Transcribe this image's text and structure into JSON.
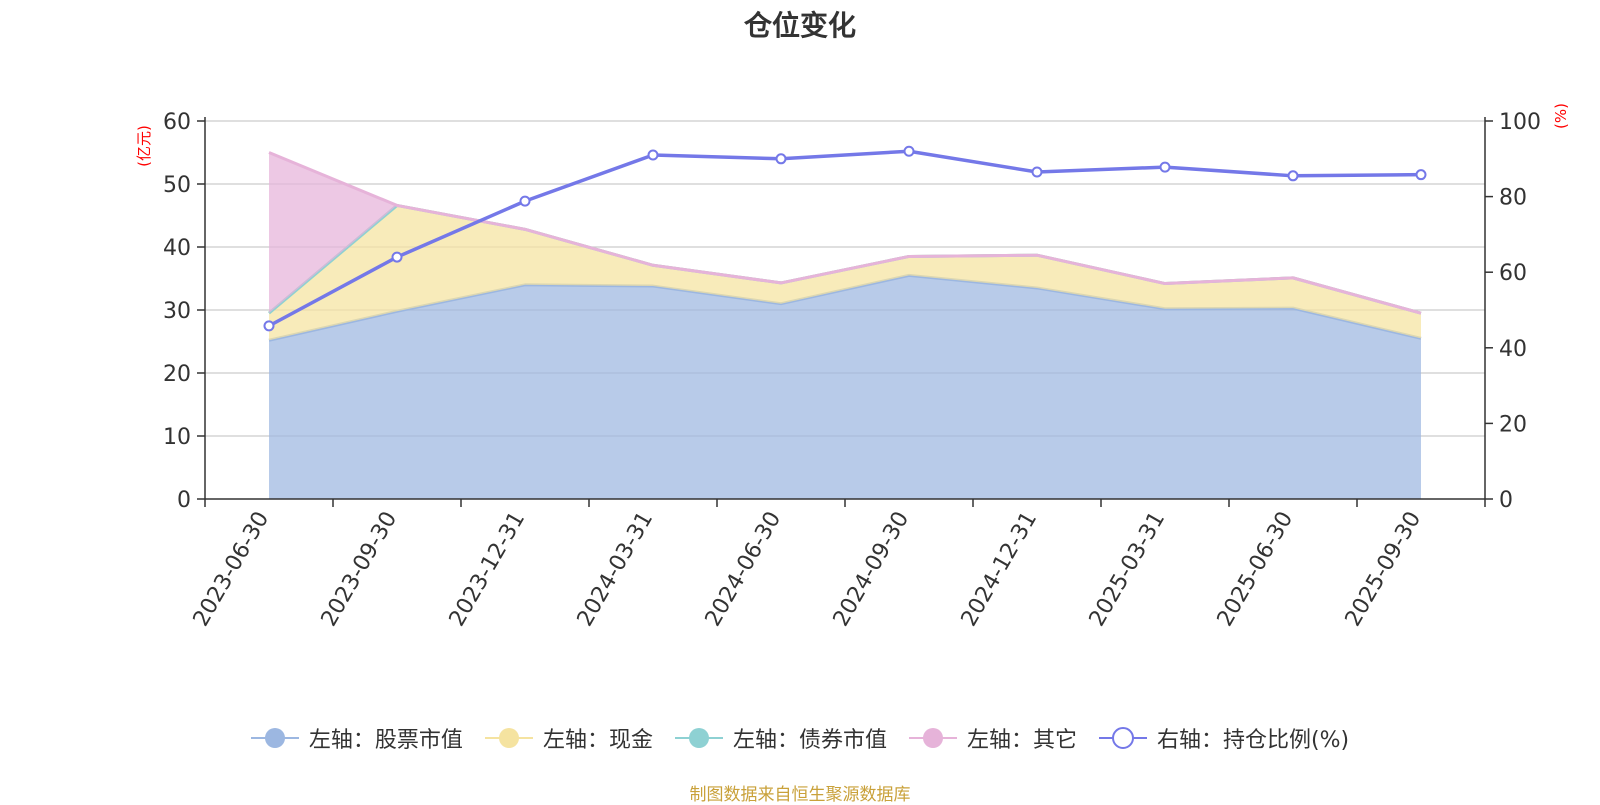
{
  "colors": {
    "stock": "#9cb7e1",
    "cash": "#f5e3a0",
    "bond": "#8ed1d3",
    "other": "#e6b3d9",
    "ratio": "#7478e8",
    "axis_unit": "#ff0000",
    "source": "#c9a13a"
  },
  "chart_data": {
    "type": "area",
    "title": "仓位变化",
    "categories": [
      "2023-06-30",
      "2023-09-30",
      "2023-12-31",
      "2024-03-31",
      "2024-06-30",
      "2024-09-30",
      "2024-12-31",
      "2025-03-31",
      "2025-06-30",
      "2025-09-30"
    ],
    "left_axis": {
      "unit": "(亿元)",
      "ylim": [
        0,
        60
      ],
      "ticks": [
        0,
        10,
        20,
        30,
        40,
        50,
        60
      ]
    },
    "right_axis": {
      "unit": "(%)",
      "ylim": [
        0,
        100
      ],
      "ticks": [
        0,
        20,
        40,
        60,
        80,
        100
      ]
    },
    "series": [
      {
        "key": "stock",
        "name": "左轴：股票市值",
        "axis": "left",
        "stacked": true,
        "values": [
          25.2,
          29.8,
          34.0,
          33.8,
          31.0,
          35.5,
          33.5,
          30.2,
          30.3,
          25.5
        ]
      },
      {
        "key": "cash",
        "name": "左轴：现金",
        "axis": "left",
        "stacked": true,
        "values": [
          4.3,
          16.8,
          8.8,
          3.3,
          3.3,
          3.0,
          5.2,
          4.0,
          4.8,
          4.0
        ]
      },
      {
        "key": "bond",
        "name": "左轴：债券市值",
        "axis": "left",
        "stacked": true,
        "values": [
          0,
          0,
          0,
          0,
          0,
          0,
          0,
          0,
          0,
          0
        ]
      },
      {
        "key": "other",
        "name": "左轴：其它",
        "axis": "left",
        "stacked": true,
        "values": [
          25.5,
          0,
          0,
          0,
          0,
          0,
          0,
          0,
          0,
          0
        ]
      },
      {
        "key": "ratio",
        "name": "右轴：持仓比例(%)",
        "axis": "right",
        "type": "line",
        "values": [
          45.8,
          64.0,
          78.8,
          91.0,
          90.0,
          92.0,
          86.5,
          87.8,
          85.5,
          85.8
        ]
      }
    ],
    "grid": true,
    "legend": "bottom"
  },
  "source": "制图数据来自恒生聚源数据库"
}
